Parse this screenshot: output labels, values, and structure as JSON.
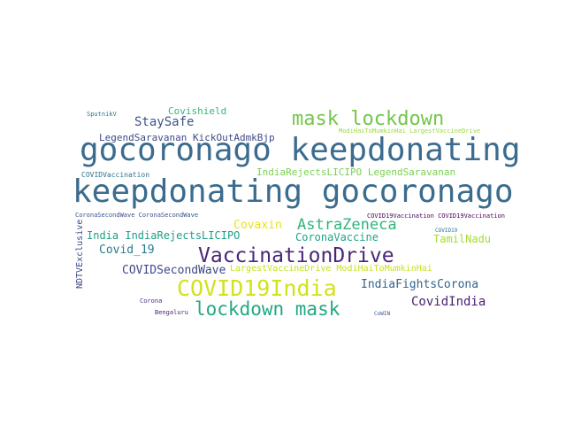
{
  "words": {
    "w1": "keepdonating gocoronago",
    "w2": "gocoronago keepdonating",
    "w3": "mask lockdown",
    "w4": "VaccinationDrive",
    "w5": "COVID19India",
    "w6": "lockdown mask",
    "w7": "AstraZeneca",
    "w8": "StaySafe",
    "w9": "Covishield",
    "w10": "LegendSaravanan KickOutAdmkBjp",
    "w11": "IndiaRejectsLICIPO LegendSaravanan",
    "w12": "Covaxin",
    "w13": "India IndiaRejectsLICIPO",
    "w14": "CoronaVaccine",
    "w15": "Covid_19",
    "w16": "TamilNadu",
    "w17": "COVIDSecondWave",
    "w18": "LargestVaccineDrive ModiHaiToMumkinHai",
    "w19": "IndiaFightsCorona",
    "w20": "CovidIndia",
    "w21": "NDTVExclusive",
    "w22": "COVIDVaccination",
    "w23": "ModiHaiToMumkinHai LargestVaccineDrive",
    "w24": "CoronaSecondWave CoronaSecondWave",
    "w25": "COVID19Vaccination COVID19Vaccination",
    "w26": "SputnikV",
    "w27": "COVID19",
    "w28": "Corona",
    "w29": "Bengaluru",
    "w30": "CoWIN"
  }
}
